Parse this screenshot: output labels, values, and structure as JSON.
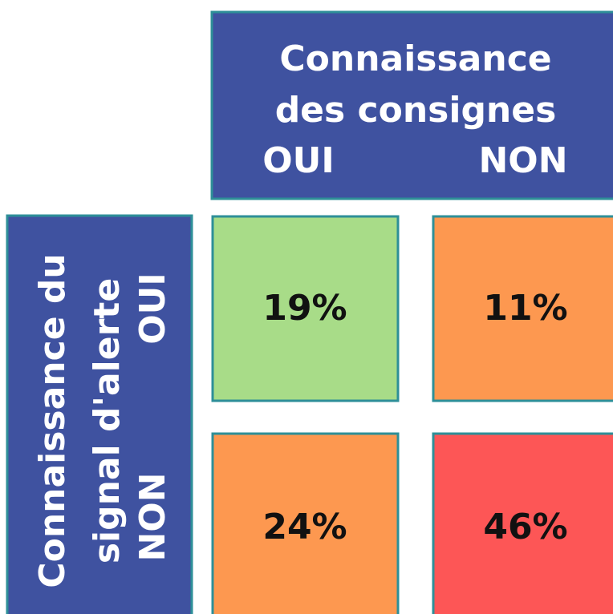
{
  "column_header": {
    "title_lines": [
      "Connaissance",
      "des consignes"
    ],
    "labels": [
      "OUI",
      "NON"
    ]
  },
  "row_header": {
    "title_lines": [
      "Connaissance du",
      "signal d'alerte"
    ],
    "labels": [
      "OUI",
      "NON"
    ]
  },
  "table": {
    "rows": [
      [
        "19%",
        "11%"
      ],
      [
        "24%",
        "46%"
      ]
    ]
  }
}
